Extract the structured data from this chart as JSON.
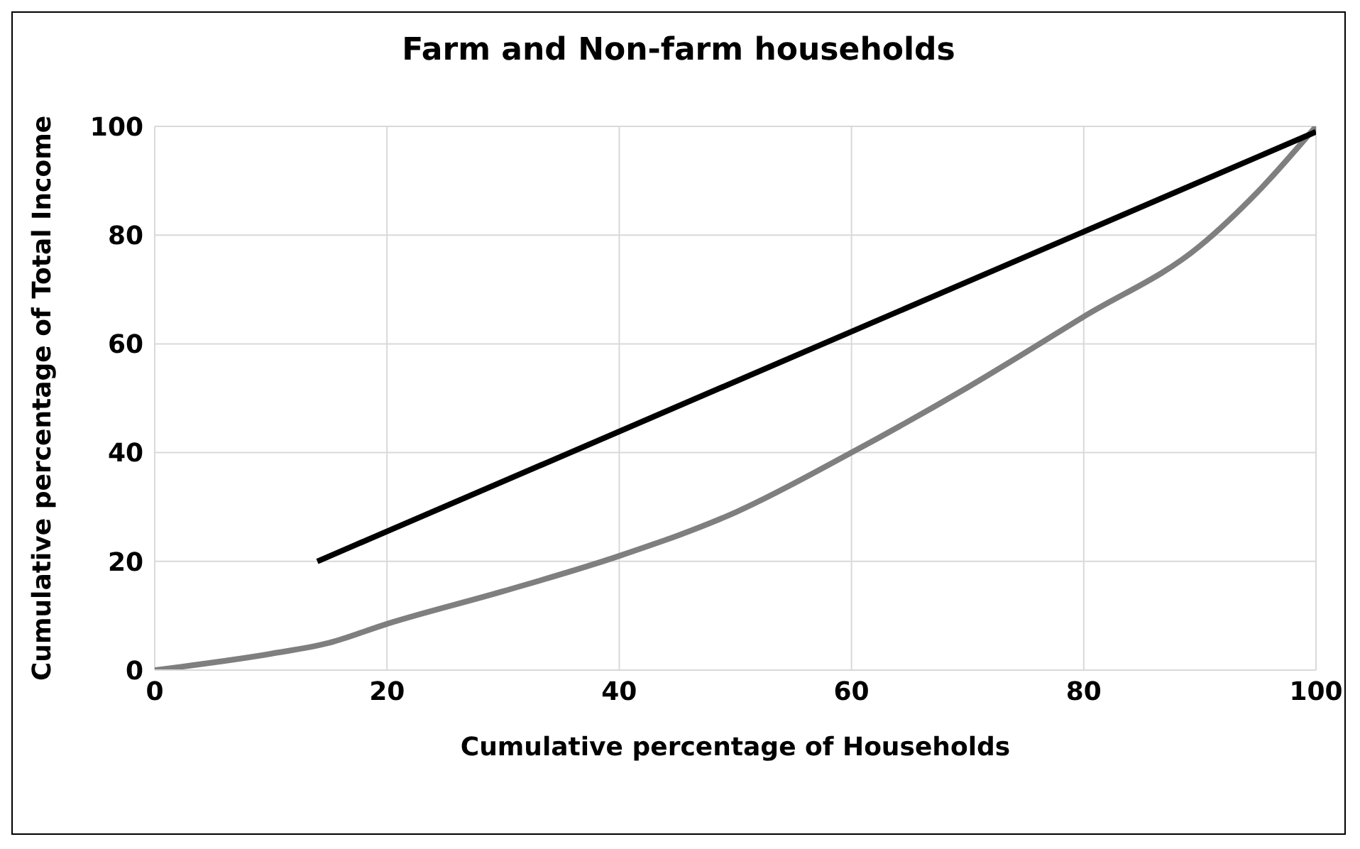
{
  "chart_data": {
    "type": "line",
    "title": "Farm and Non-farm households",
    "xlabel": "Cumulative percentage of Households",
    "ylabel": "Cumulative percentage of Total Income",
    "xlim": [
      0,
      100
    ],
    "xticks": [
      0,
      20,
      40,
      60,
      80,
      100
    ],
    "ylim": [
      0,
      100
    ],
    "yticks": [
      0,
      20,
      40,
      60,
      80,
      100
    ],
    "grid": true,
    "marker": "none",
    "line_style": "solid",
    "series": [
      {
        "color": "#7f7f7f",
        "x": [
          0,
          10,
          15,
          20,
          30,
          40,
          50,
          60,
          70,
          80,
          90,
          95,
          100
        ],
        "values": [
          0,
          3,
          5,
          8.5,
          14.5,
          21,
          29,
          40,
          52,
          65,
          78,
          88,
          100
        ]
      },
      {
        "color": "#000000",
        "x": [
          14,
          100
        ],
        "values": [
          20,
          99
        ]
      }
    ]
  }
}
